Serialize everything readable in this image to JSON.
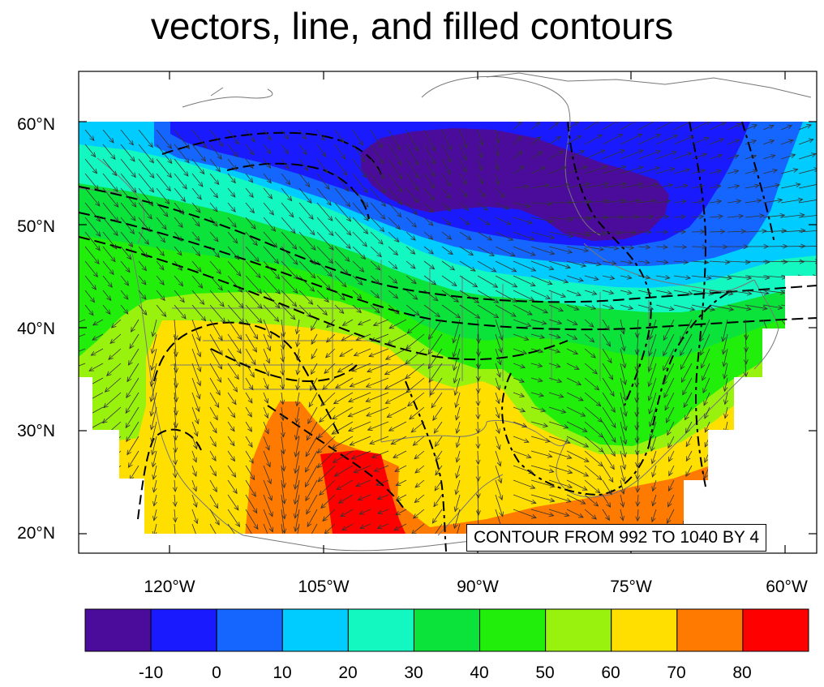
{
  "title": "vectors, line, and filled contours",
  "contour_info": "CONTOUR FROM 992 TO 1040 BY 4",
  "lat_labels": [
    "60°N",
    "50°N",
    "40°N",
    "30°N",
    "20°N"
  ],
  "lon_labels": [
    "120°W",
    "105°W",
    "90°W",
    "75°W",
    "60°W"
  ],
  "colorbar": {
    "labels": [
      "-10",
      "0",
      "10",
      "20",
      "30",
      "40",
      "50",
      "60",
      "70",
      "80"
    ],
    "colors": [
      "#4b0c9c",
      "#1a1aff",
      "#1466ff",
      "#00ccff",
      "#13f7c0",
      "#0be23a",
      "#22ee0c",
      "#99f20e",
      "#ffdf00",
      "#ff7a00",
      "#ff0000"
    ]
  }
}
